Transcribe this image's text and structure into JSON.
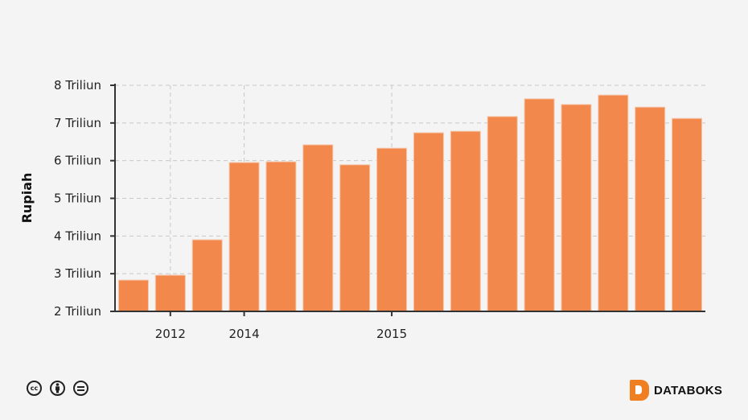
{
  "chart_data": {
    "type": "bar",
    "title": "",
    "xlabel": "",
    "ylabel": "Rupiah",
    "ylim": [
      2,
      8
    ],
    "yticks": [
      2,
      3,
      4,
      5,
      6,
      7,
      8
    ],
    "ytick_labels": [
      "2 Triliun",
      "3 Triliun",
      "4 Triliun",
      "5 Triliun",
      "6 Triliun",
      "7 Triliun",
      "8 Triliun"
    ],
    "categories": [
      "",
      "2012",
      "",
      "2014",
      "",
      "",
      "",
      "2015",
      "",
      "",
      "",
      "",
      "",
      "",
      "",
      ""
    ],
    "values": [
      2.83,
      2.96,
      3.9,
      5.95,
      5.97,
      6.42,
      5.89,
      6.33,
      6.74,
      6.78,
      7.17,
      7.64,
      7.49,
      7.74,
      7.42,
      7.12
    ],
    "grid": true,
    "bar_color": "#f2884b"
  },
  "footer": {
    "license_icons": [
      "cc-icon",
      "by-icon",
      "nd-icon"
    ],
    "cc_text": "cc",
    "brand": "DATABOKS",
    "brand_color": "#f07f22"
  }
}
